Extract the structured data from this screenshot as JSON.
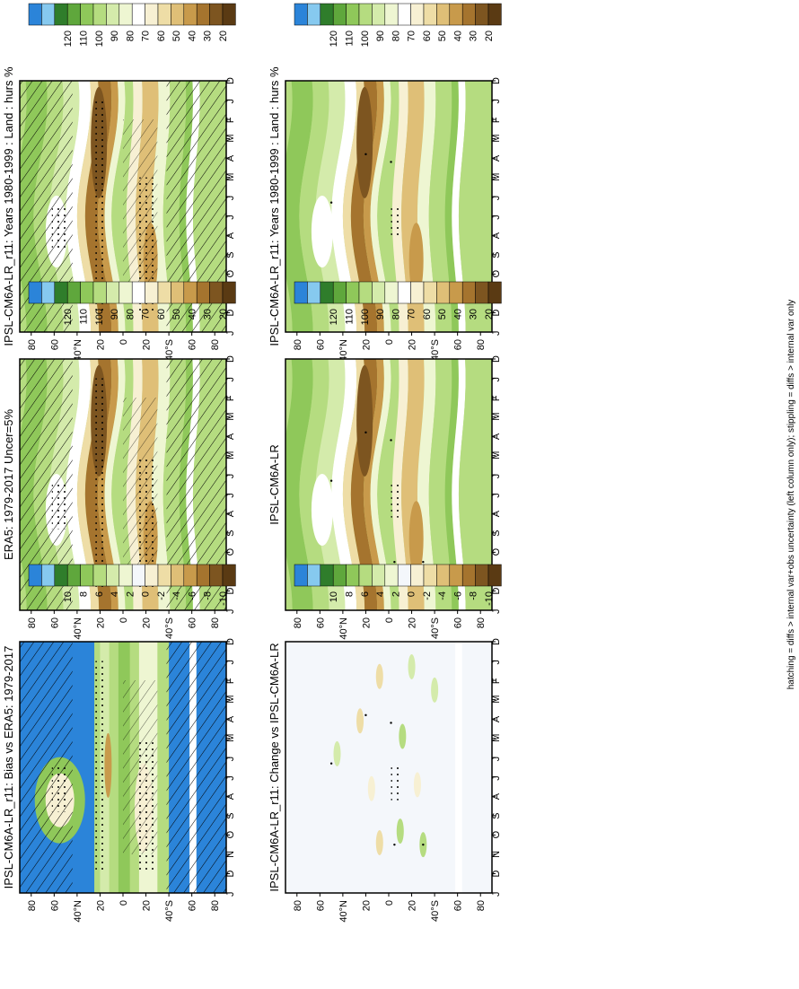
{
  "footer": "hatching = diffs > internal var+obs uncertainty (left column only); stippling = diffs > internal var only",
  "colors": {
    "hurs_scale": [
      "#5a3a13",
      "#7d5520",
      "#a5742e",
      "#c89a4b",
      "#dfbf77",
      "#eedda6",
      "#f7f0d3",
      "#ffffff",
      "#eef6d2",
      "#d4ebab",
      "#b5dc80",
      "#8fc85a",
      "#5fa73c",
      "#2f7d2b",
      "#86c9ef",
      "#2b84d9"
    ],
    "diff_scale": [
      "#5a3a13",
      "#7d5520",
      "#a5742e",
      "#c89a4b",
      "#dfbf77",
      "#eedda6",
      "#f7f0d3",
      "#f4f7fb",
      "#eef6d2",
      "#d4ebab",
      "#b5dc80",
      "#8fc85a",
      "#5fa73c",
      "#2f7d2b",
      "#86c9ef",
      "#2b84d9"
    ],
    "frame": "#000000",
    "diff_zero": "#f4f7fb"
  },
  "panels": {
    "p1": {
      "title": "IPSL-CM6A-LR_r11: Years 1980-1999 : Land : hurs %",
      "months": [
        "D",
        "J",
        "F",
        "M",
        "A",
        "M",
        "J",
        "J",
        "A",
        "S",
        "O",
        "N",
        "D",
        "J"
      ],
      "lats": [
        "80",
        "60",
        "40°N",
        "20",
        "0",
        "20",
        "40°S",
        "60",
        "80"
      ],
      "cb": [
        "120",
        "110",
        "100",
        "90",
        "80",
        "70",
        "60",
        "50",
        "40",
        "30",
        "20"
      ]
    },
    "p2": {
      "title": "IPSL-CM6A-LR_r11: Years 1980-1999 : Land : hurs %",
      "months": [
        "D",
        "J",
        "F",
        "M",
        "A",
        "M",
        "J",
        "J",
        "A",
        "S",
        "O",
        "N",
        "D",
        "J"
      ],
      "lats": [
        "80",
        "60",
        "40°N",
        "20",
        "0",
        "20",
        "40°S",
        "60",
        "80"
      ],
      "cb": [
        "120",
        "110",
        "100",
        "90",
        "80",
        "70",
        "60",
        "50",
        "40",
        "30",
        "20"
      ]
    },
    "p3": {
      "title": "ERA5: 1979-2017 Uncer=5%",
      "months": [
        "D",
        "J",
        "F",
        "M",
        "A",
        "M",
        "J",
        "J",
        "A",
        "S",
        "O",
        "N",
        "D",
        "J"
      ],
      "lats": [
        "80",
        "60",
        "40°N",
        "20",
        "0",
        "20",
        "40°S",
        "60",
        "80"
      ],
      "cb": [
        "120",
        "110",
        "100",
        "90",
        "80",
        "70",
        "60",
        "50",
        "40",
        "30",
        "20"
      ]
    },
    "p4": {
      "title": "IPSL-CM6A-LR",
      "months": [
        "D",
        "J",
        "F",
        "M",
        "A",
        "M",
        "J",
        "J",
        "A",
        "S",
        "O",
        "N",
        "D",
        "J"
      ],
      "lats": [
        "80",
        "60",
        "40°N",
        "20",
        "0",
        "20",
        "40°S",
        "60",
        "80"
      ],
      "cb": [
        "120",
        "110",
        "100",
        "90",
        "80",
        "70",
        "60",
        "50",
        "40",
        "30",
        "20"
      ]
    },
    "p5": {
      "title": "IPSL-CM6A-LR_r11: Bias vs ERA5: 1979-2017",
      "months": [
        "D",
        "J",
        "F",
        "M",
        "A",
        "M",
        "J",
        "J",
        "A",
        "S",
        "O",
        "N",
        "D",
        "J"
      ],
      "lats": [
        "80",
        "60",
        "40°N",
        "20",
        "0",
        "20",
        "40°S",
        "60",
        "80"
      ],
      "cb": [
        "10",
        "8",
        "6",
        "4",
        "2",
        "0",
        "-2",
        "-4",
        "-6",
        "-8",
        "-10"
      ]
    },
    "p6": {
      "title": "IPSL-CM6A-LR_r11: Change vs IPSL-CM6A-LR",
      "months": [
        "D",
        "J",
        "F",
        "M",
        "A",
        "M",
        "J",
        "J",
        "A",
        "S",
        "O",
        "N",
        "D",
        "J"
      ],
      "lats": [
        "80",
        "60",
        "40°N",
        "20",
        "0",
        "20",
        "40°S",
        "60",
        "80"
      ],
      "cb": [
        "10",
        "8",
        "6",
        "4",
        "2",
        "0",
        "-2",
        "-4",
        "-6",
        "-8",
        "-10"
      ]
    }
  },
  "chart_data": [
    {
      "type": "heatmap",
      "title": "IPSL-CM6A-LR_r11: Years 1980-1999 : Land : hurs %",
      "xlabel": "",
      "ylabel": "",
      "x": [
        "D",
        "J",
        "F",
        "M",
        "A",
        "M",
        "J",
        "J",
        "A",
        "S",
        "O",
        "N",
        "D",
        "J"
      ],
      "y_ticks": [
        "80",
        "60",
        "40°N",
        "20",
        "0",
        "20",
        "40°S",
        "60",
        "80"
      ],
      "colorbar": [
        "120",
        "110",
        "100",
        "90",
        "80",
        "70",
        "60",
        "50",
        "40",
        "30",
        "20"
      ],
      "hatching": true,
      "stippling": true
    },
    {
      "type": "heatmap",
      "title": "IPSL-CM6A-LR_r11: Years 1980-1999 : Land : hurs %",
      "xlabel": "",
      "ylabel": "",
      "x": [
        "D",
        "J",
        "F",
        "M",
        "A",
        "M",
        "J",
        "J",
        "A",
        "S",
        "O",
        "N",
        "D",
        "J"
      ],
      "y_ticks": [
        "80",
        "60",
        "40°N",
        "20",
        "0",
        "20",
        "40°S",
        "60",
        "80"
      ],
      "colorbar": [
        "120",
        "110",
        "100",
        "90",
        "80",
        "70",
        "60",
        "50",
        "40",
        "30",
        "20"
      ],
      "hatching": false,
      "stippling": true
    },
    {
      "type": "heatmap",
      "title": "ERA5: 1979-2017 Uncer=5%",
      "xlabel": "",
      "ylabel": "",
      "x": [
        "D",
        "J",
        "F",
        "M",
        "A",
        "M",
        "J",
        "J",
        "A",
        "S",
        "O",
        "N",
        "D",
        "J"
      ],
      "y_ticks": [
        "80",
        "60",
        "40°N",
        "20",
        "0",
        "20",
        "40°S",
        "60",
        "80"
      ],
      "colorbar": [
        "120",
        "110",
        "100",
        "90",
        "80",
        "70",
        "60",
        "50",
        "40",
        "30",
        "20"
      ],
      "hatching": true,
      "stippling": true
    },
    {
      "type": "heatmap",
      "title": "IPSL-CM6A-LR",
      "xlabel": "",
      "ylabel": "",
      "x": [
        "D",
        "J",
        "F",
        "M",
        "A",
        "M",
        "J",
        "J",
        "A",
        "S",
        "O",
        "N",
        "D",
        "J"
      ],
      "y_ticks": [
        "80",
        "60",
        "40°N",
        "20",
        "0",
        "20",
        "40°S",
        "60",
        "80"
      ],
      "colorbar": [
        "120",
        "110",
        "100",
        "90",
        "80",
        "70",
        "60",
        "50",
        "40",
        "30",
        "20"
      ],
      "hatching": false,
      "stippling": true
    },
    {
      "type": "heatmap",
      "title": "IPSL-CM6A-LR_r11: Bias vs ERA5: 1979-2017",
      "xlabel": "",
      "ylabel": "",
      "x": [
        "D",
        "J",
        "F",
        "M",
        "A",
        "M",
        "J",
        "J",
        "A",
        "S",
        "O",
        "N",
        "D",
        "J"
      ],
      "y_ticks": [
        "80",
        "60",
        "40°N",
        "20",
        "0",
        "20",
        "40°S",
        "60",
        "80"
      ],
      "colorbar": [
        "10",
        "8",
        "6",
        "4",
        "2",
        "0",
        "-2",
        "-4",
        "-6",
        "-8",
        "-10"
      ],
      "hatching": true,
      "stippling": true
    },
    {
      "type": "heatmap",
      "title": "IPSL-CM6A-LR_r11: Change vs IPSL-CM6A-LR",
      "xlabel": "",
      "ylabel": "",
      "x": [
        "D",
        "J",
        "F",
        "M",
        "A",
        "M",
        "J",
        "J",
        "A",
        "S",
        "O",
        "N",
        "D",
        "J"
      ],
      "y_ticks": [
        "80",
        "60",
        "40°N",
        "20",
        "0",
        "20",
        "40°S",
        "60",
        "80"
      ],
      "colorbar": [
        "10",
        "8",
        "6",
        "4",
        "2",
        "0",
        "-2",
        "-4",
        "-6",
        "-8",
        "-10"
      ],
      "hatching": false,
      "stippling": true
    }
  ]
}
